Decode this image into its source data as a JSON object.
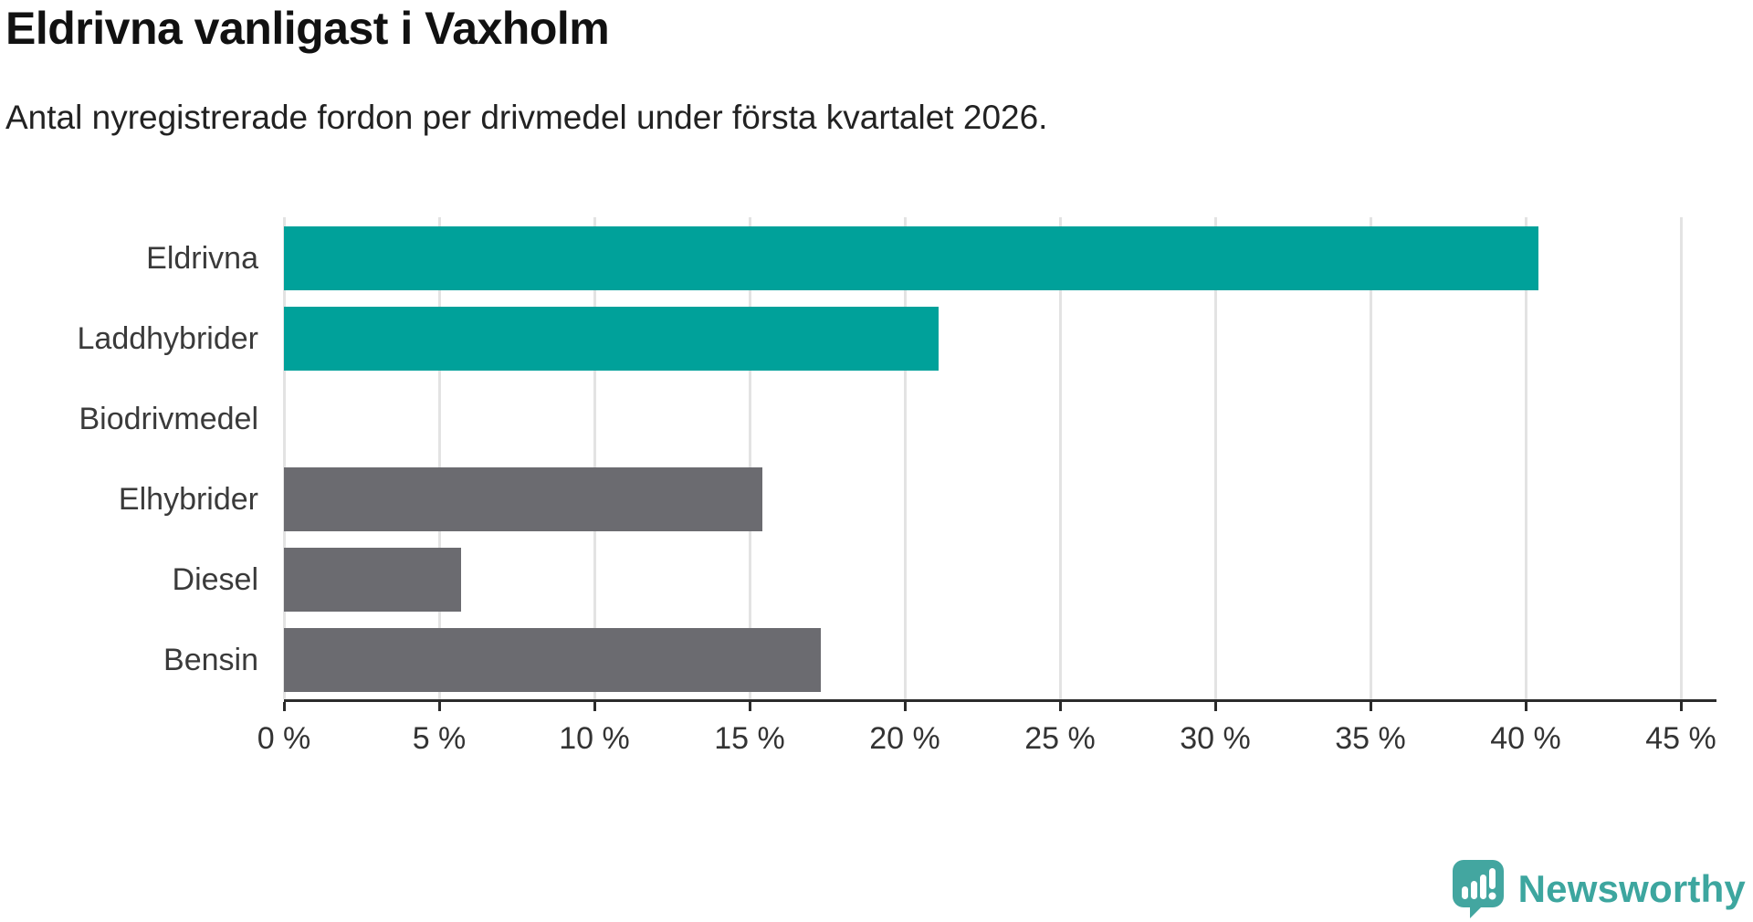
{
  "header": {
    "title": "Eldrivna vanligast i Vaxholm",
    "subtitle": "Antal nyregistrerade fordon per drivmedel under första kvartalet 2026."
  },
  "chart_data": {
    "type": "bar",
    "orientation": "horizontal",
    "title": "Eldrivna vanligast i Vaxholm",
    "subtitle": "Antal nyregistrerade fordon per drivmedel under första kvartalet 2026.",
    "categories": [
      "Eldrivna",
      "Laddhybrider",
      "Biodrivmedel",
      "Elhybrider",
      "Diesel",
      "Bensin"
    ],
    "values": [
      40.4,
      21.1,
      0,
      15.4,
      5.7,
      17.3
    ],
    "unit": "%",
    "xlabel": "",
    "ylabel": "",
    "xlim": [
      0,
      45
    ],
    "x_ticks": [
      0,
      5,
      10,
      15,
      20,
      25,
      30,
      35,
      40,
      45
    ],
    "x_tick_suffix": " %",
    "grid": true,
    "gridline_color": "#e3e3e3",
    "axis_color": "#2b2b2b",
    "label_color": "#3a3a3a",
    "bar_colors": [
      "#00a19a",
      "#00a19a",
      "#6b6b70",
      "#6b6b70",
      "#6b6b70",
      "#6b6b70"
    ],
    "highlight_color": "#00a19a",
    "default_color": "#6b6b70",
    "legend": "none"
  },
  "footer": {
    "logo_text": "Newsworthy",
    "logo_color": "#3da69f",
    "logo_icon": "newsworthy-speech-bubble-chart-icon"
  }
}
